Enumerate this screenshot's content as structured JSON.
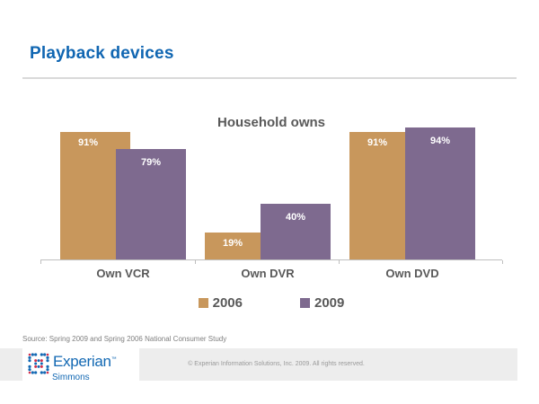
{
  "slide": {
    "title": "Playback devices",
    "source_note": "Source: Spring 2009 and Spring 2006 National Consumer Study"
  },
  "chart_data": {
    "type": "bar",
    "title": "Household owns",
    "categories": [
      "Own VCR",
      "Own DVR",
      "Own DVD"
    ],
    "series": [
      {
        "name": "2006",
        "color": "#c8975c",
        "values": [
          91,
          19,
          91
        ]
      },
      {
        "name": "2009",
        "color": "#7e6a8f",
        "values": [
          79,
          40,
          94
        ]
      }
    ],
    "value_suffix": "%",
    "ylim": [
      0,
      100
    ],
    "grid": false,
    "axes_labels_hidden": true,
    "legend_position": "bottom",
    "data_labels": "inside-top, white bold"
  },
  "footer": {
    "logo_text": "Experian",
    "logo_tm": "TM",
    "logo_sub": "Simmons",
    "copyright": "© Experian Information Solutions, Inc. 2009.  All rights reserved."
  },
  "colors": {
    "title_blue": "#1066b2",
    "series_2006": "#c8975c",
    "series_2009": "#7e6a8f",
    "text_gray": "#595959",
    "axis_gray": "#bfbfbf",
    "rule_gray": "#d9d9d9",
    "footer_band": "#ededed",
    "logo_blue": "#1268b3",
    "logo_red": "#d42e4a"
  }
}
